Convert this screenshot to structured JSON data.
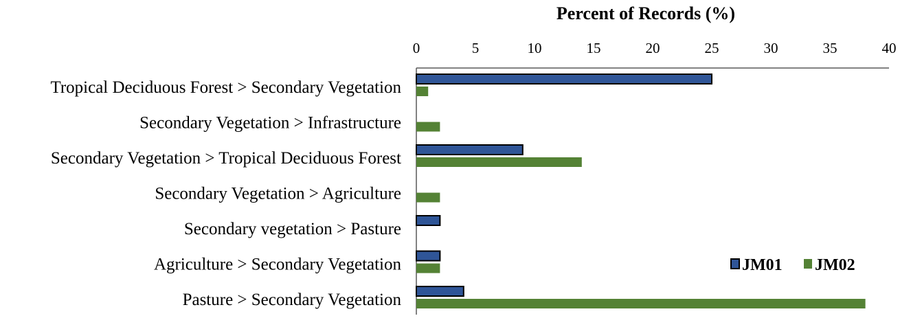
{
  "chart_data": {
    "type": "bar",
    "orientation": "horizontal",
    "title": "Percent of Records (%)",
    "x_axis_position": "top",
    "xlim": [
      0,
      40
    ],
    "x_ticks": [
      0,
      5,
      10,
      15,
      20,
      25,
      30,
      35,
      40
    ],
    "categories": [
      "Tropical Deciduous Forest > Secondary Vegetation",
      "Secondary Vegetation > Infrastructure",
      "Secondary Vegetation > Tropical Deciduous Forest",
      "Secondary Vegetation > Agriculture",
      "Secondary vegetation > Pasture",
      "Agriculture > Secondary Vegetation",
      "Pasture > Secondary Vegetation"
    ],
    "series": [
      {
        "name": "JM01",
        "color": "#2f5597",
        "values": [
          25,
          0,
          9,
          0,
          2,
          2,
          4
        ]
      },
      {
        "name": "JM02",
        "color": "#548235",
        "values": [
          1,
          2,
          14,
          2,
          0,
          2,
          38
        ]
      }
    ],
    "legend": {
      "placement": "bottom-right",
      "items": [
        "JM01",
        "JM02"
      ]
    },
    "grid": false
  }
}
